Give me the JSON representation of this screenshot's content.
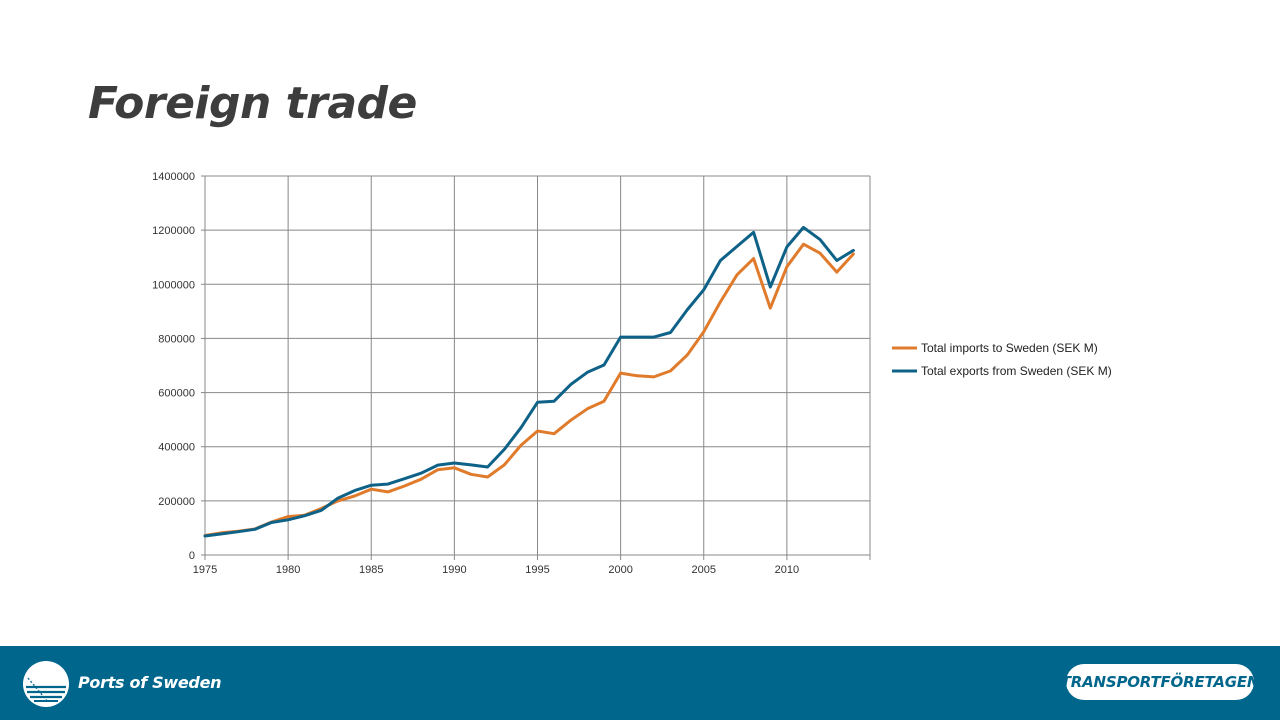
{
  "slide": {
    "title": "Foreign trade"
  },
  "colors": {
    "imports": "#e07b2c",
    "exports": "#0e6187",
    "footer": "#00668c",
    "grid": "#888888"
  },
  "footer": {
    "left_logo_text": "Ports of Sweden",
    "right_logo_text": "TRANSPORTFÖRETAGEN",
    "left_logo_icon": "ports-of-sweden-emblem-icon"
  },
  "chart_data": {
    "type": "line",
    "title": "",
    "xlabel": "",
    "ylabel": "",
    "xlim": [
      1975,
      2015
    ],
    "ylim": [
      0,
      1400000
    ],
    "x_ticks": [
      "1975",
      "1980",
      "1985",
      "1990",
      "1995",
      "2000",
      "2005",
      "2010"
    ],
    "y_ticks": [
      "0",
      "200000",
      "400000",
      "600000",
      "800000",
      "1000000",
      "1200000",
      "1400000"
    ],
    "grid": true,
    "legend_position": "right",
    "x": [
      1975,
      1976,
      1977,
      1978,
      1979,
      1980,
      1981,
      1982,
      1983,
      1984,
      1985,
      1986,
      1987,
      1988,
      1989,
      1990,
      1991,
      1992,
      1993,
      1994,
      1995,
      1996,
      1997,
      1998,
      1999,
      2000,
      2001,
      2002,
      2003,
      2004,
      2005,
      2006,
      2007,
      2008,
      2009,
      2010,
      2011,
      2012,
      2013,
      2014
    ],
    "series": [
      {
        "name": "Total imports to Sweden (SEK M)",
        "values": [
          72000,
          82000,
          88000,
          96000,
          122000,
          142000,
          147000,
          172000,
          200000,
          218000,
          243000,
          233000,
          255000,
          280000,
          315000,
          322000,
          298000,
          288000,
          333000,
          405000,
          458000,
          448000,
          498000,
          540000,
          568000,
          672000,
          662000,
          658000,
          680000,
          738000,
          825000,
          935000,
          1035000,
          1095000,
          912000,
          1065000,
          1148000,
          1115000,
          1045000,
          1112000
        ]
      },
      {
        "name": "Total exports from Sweden (SEK M)",
        "values": [
          70000,
          78000,
          86000,
          95000,
          120000,
          130000,
          145000,
          165000,
          210000,
          238000,
          258000,
          262000,
          282000,
          302000,
          332000,
          340000,
          333000,
          325000,
          390000,
          470000,
          564000,
          568000,
          630000,
          675000,
          702000,
          805000,
          805000,
          805000,
          822000,
          905000,
          980000,
          1088000,
          1140000,
          1192000,
          990000,
          1138000,
          1210000,
          1165000,
          1088000,
          1125000
        ]
      }
    ]
  }
}
